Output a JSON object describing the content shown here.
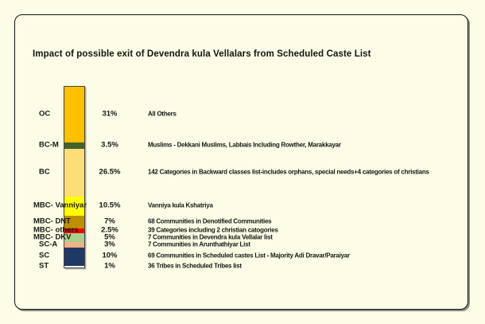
{
  "page": {
    "background_color": "#FDFCE6",
    "frame_border_color": "#141414"
  },
  "title": "Impact of possible exit of Devendra kula Vellalars from Scheduled Caste List",
  "chart_data": {
    "type": "bar",
    "subtype": "single-column-stacked-100pct",
    "title": "Impact of possible exit of Devendra kula Vellalars from Scheduled Caste List",
    "unit": "%",
    "total": 100,
    "legend_position": "none",
    "grid": false,
    "categories": [
      "OC",
      "BC-M",
      "BC",
      "MBC- Vanniyar",
      "MBC- DNT",
      "MBC- others",
      "MBC- DKV",
      "SC-A",
      "SC",
      "ST"
    ],
    "values": [
      31,
      3.5,
      26.5,
      10.5,
      7,
      2.5,
      5,
      3,
      10,
      1
    ],
    "segments": [
      {
        "label": "OC",
        "value": 31,
        "pct_label": "31%",
        "color": "#FDC101",
        "description": "All Others"
      },
      {
        "label": "BC-M",
        "value": 3.5,
        "pct_label": "3.5%",
        "color": "#43622B",
        "description": "Muslims - Dekkani Muslims, Labbais Including Rowther, Marakkayar"
      },
      {
        "label": "BC",
        "value": 26.5,
        "pct_label": "26.5%",
        "color": "#FBDE75",
        "description": "142 Categories in Backward classes list-includes orphans, special needs+4 categories of christians"
      },
      {
        "label": "MBC- Vanniyar",
        "value": 10.5,
        "pct_label": "10.5%",
        "color": "#FFFF00",
        "description": "Vanniya kula Kshatriya"
      },
      {
        "label": "MBC- DNT",
        "value": 7,
        "pct_label": "7%",
        "color": "#BF8F00",
        "description": "68 Communities in Denotified Communities"
      },
      {
        "label": "MBC- others",
        "value": 2.5,
        "pct_label": "2.5%",
        "color": "#F10505",
        "description": "39 Categories including 2 christian catogories"
      },
      {
        "label": "MBC- DKV",
        "value": 5,
        "pct_label": "5%",
        "color": "#A9D18E",
        "description": "7 Communities in Devendra kula Vellalar list"
      },
      {
        "label": "SC-A",
        "value": 3,
        "pct_label": "3%",
        "color": "#F4B183",
        "description": "7 Communities in Arunthathiyar List"
      },
      {
        "label": "SC",
        "value": 10,
        "pct_label": "10%",
        "color": "#1F3864",
        "description": "69 Communities in Scheduled castes List - Majority Adi Dravar/Paraiyar"
      },
      {
        "label": "ST",
        "value": 1,
        "pct_label": "1%",
        "color": "#FFFFFF",
        "description": "36 Tribes in Scheduled Tribes list"
      }
    ]
  }
}
